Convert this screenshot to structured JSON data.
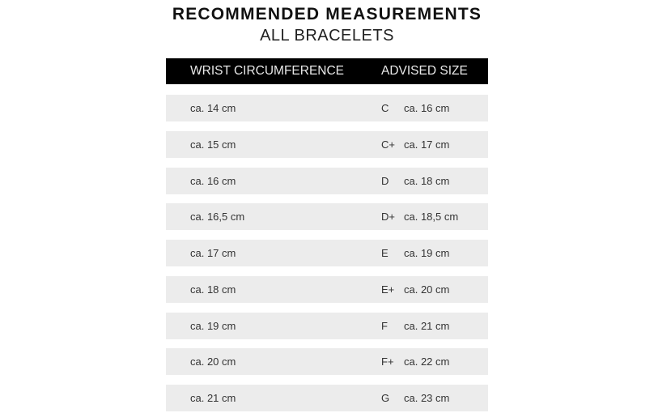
{
  "title": "RECOMMENDED MEASUREMENTS",
  "subtitle": "ALL BRACELETS",
  "table": {
    "headers": [
      "WRIST CIRCUMFERENCE",
      "ADVISED SIZE"
    ],
    "rows": [
      {
        "wrist": "ca. 14 cm",
        "size": "C",
        "length": "ca. 16 cm"
      },
      {
        "wrist": "ca. 15 cm",
        "size": "C+",
        "length": "ca. 17 cm"
      },
      {
        "wrist": "ca. 16 cm",
        "size": "D",
        "length": "ca. 18 cm"
      },
      {
        "wrist": "ca. 16,5 cm",
        "size": "D+",
        "length": "ca. 18,5 cm"
      },
      {
        "wrist": "ca. 17 cm",
        "size": "E",
        "length": "ca. 19 cm"
      },
      {
        "wrist": "ca. 18 cm",
        "size": "E+",
        "length": "ca. 20 cm"
      },
      {
        "wrist": "ca. 19 cm",
        "size": "F",
        "length": "ca. 21 cm"
      },
      {
        "wrist": "ca. 20 cm",
        "size": "F+",
        "length": "ca. 22 cm"
      },
      {
        "wrist": "ca. 21 cm",
        "size": "G",
        "length": "ca. 23 cm"
      }
    ]
  }
}
